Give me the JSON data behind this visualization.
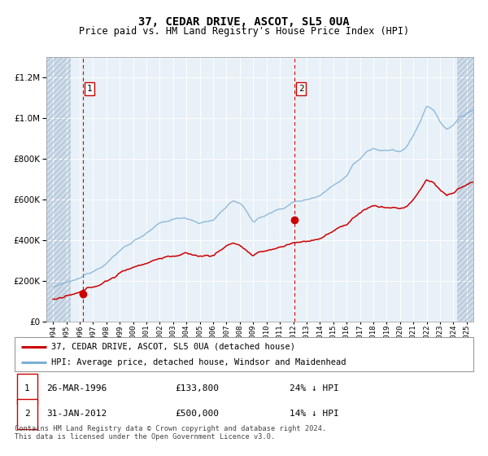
{
  "title": "37, CEDAR DRIVE, ASCOT, SL5 0UA",
  "subtitle": "Price paid vs. HM Land Registry's House Price Index (HPI)",
  "legend_line1": "37, CEDAR DRIVE, ASCOT, SL5 0UA (detached house)",
  "legend_line2": "HPI: Average price, detached house, Windsor and Maidenhead",
  "annotation1_date": "26-MAR-1996",
  "annotation1_price": "£133,800",
  "annotation1_hpi": "24% ↓ HPI",
  "annotation2_date": "31-JAN-2012",
  "annotation2_price": "£500,000",
  "annotation2_hpi": "14% ↓ HPI",
  "footer": "Contains HM Land Registry data © Crown copyright and database right 2024.\nThis data is licensed under the Open Government Licence v3.0.",
  "sale1_year": 1996.23,
  "sale1_value": 133800,
  "sale2_year": 2012.08,
  "sale2_value": 500000,
  "hpi_color": "#7bafd4",
  "price_color": "#cc0000",
  "sale_dot_color": "#cc0000",
  "vline_color": "#cc0000",
  "plot_bg": "#e8f0f8",
  "hatch_bg": "#d0dce8",
  "ylim_max": 1300000,
  "ylim_min": 0,
  "year_start": 1994,
  "year_end": 2025
}
